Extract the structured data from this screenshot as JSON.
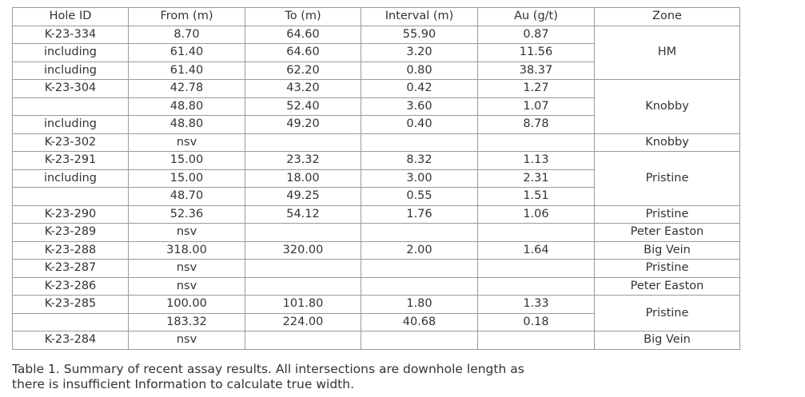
{
  "table": {
    "header": [
      "Hole ID",
      "From (m)",
      "To (m)",
      "Interval (m)",
      "Au (g/t)",
      "Zone"
    ],
    "groups": [
      {
        "zone": "HM",
        "rows": [
          [
            "K-23-334",
            "8.70",
            "64.60",
            "55.90",
            "0.87"
          ],
          [
            "including",
            "61.40",
            "64.60",
            "3.20",
            "11.56"
          ],
          [
            "including",
            "61.40",
            "62.20",
            "0.80",
            "38.37"
          ]
        ]
      },
      {
        "zone": "Knobby",
        "rows": [
          [
            "K-23-304",
            "42.78",
            "43.20",
            "0.42",
            "1.27"
          ],
          [
            null,
            "48.80",
            "52.40",
            "3.60",
            "1.07"
          ],
          [
            "including",
            "48.80",
            "49.20",
            "0.40",
            "8.78"
          ]
        ]
      },
      {
        "zone": "Knobby",
        "rows": [
          [
            "K-23-302",
            "nsv",
            null,
            null,
            null
          ]
        ]
      },
      {
        "zone": "Pristine",
        "rows": [
          [
            "K-23-291",
            "15.00",
            "23.32",
            "8.32",
            "1.13"
          ],
          [
            "including",
            "15.00",
            "18.00",
            "3.00",
            "2.31"
          ],
          [
            null,
            "48.70",
            "49.25",
            "0.55",
            "1.51"
          ]
        ]
      },
      {
        "zone": "Pristine",
        "rows": [
          [
            "K-23-290",
            "52.36",
            "54.12",
            "1.76",
            "1.06"
          ]
        ]
      },
      {
        "zone": "Peter Easton",
        "rows": [
          [
            "K-23-289",
            "nsv",
            null,
            null,
            null
          ]
        ]
      },
      {
        "zone": "Big Vein",
        "rows": [
          [
            "K-23-288",
            "318.00",
            "320.00",
            "2.00",
            "1.64"
          ]
        ]
      },
      {
        "zone": "Pristine",
        "rows": [
          [
            "K-23-287",
            "nsv",
            null,
            null,
            null
          ]
        ]
      },
      {
        "zone": "Peter Easton",
        "rows": [
          [
            "K-23-286",
            "nsv",
            null,
            null,
            null
          ]
        ]
      },
      {
        "zone": "Pristine",
        "rows": [
          [
            "K-23-285",
            "100.00",
            "101.80",
            "1.80",
            "1.33"
          ],
          [
            null,
            "183.32",
            "224.00",
            "40.68",
            "0.18"
          ]
        ]
      },
      {
        "zone": "Big Vein",
        "rows": [
          [
            "K-23-284",
            "nsv",
            null,
            null,
            null
          ]
        ]
      }
    ]
  },
  "caption": "Table 1. Summary of recent assay results. All intersections are downhole length as there is insufficient Information to calculate true width."
}
